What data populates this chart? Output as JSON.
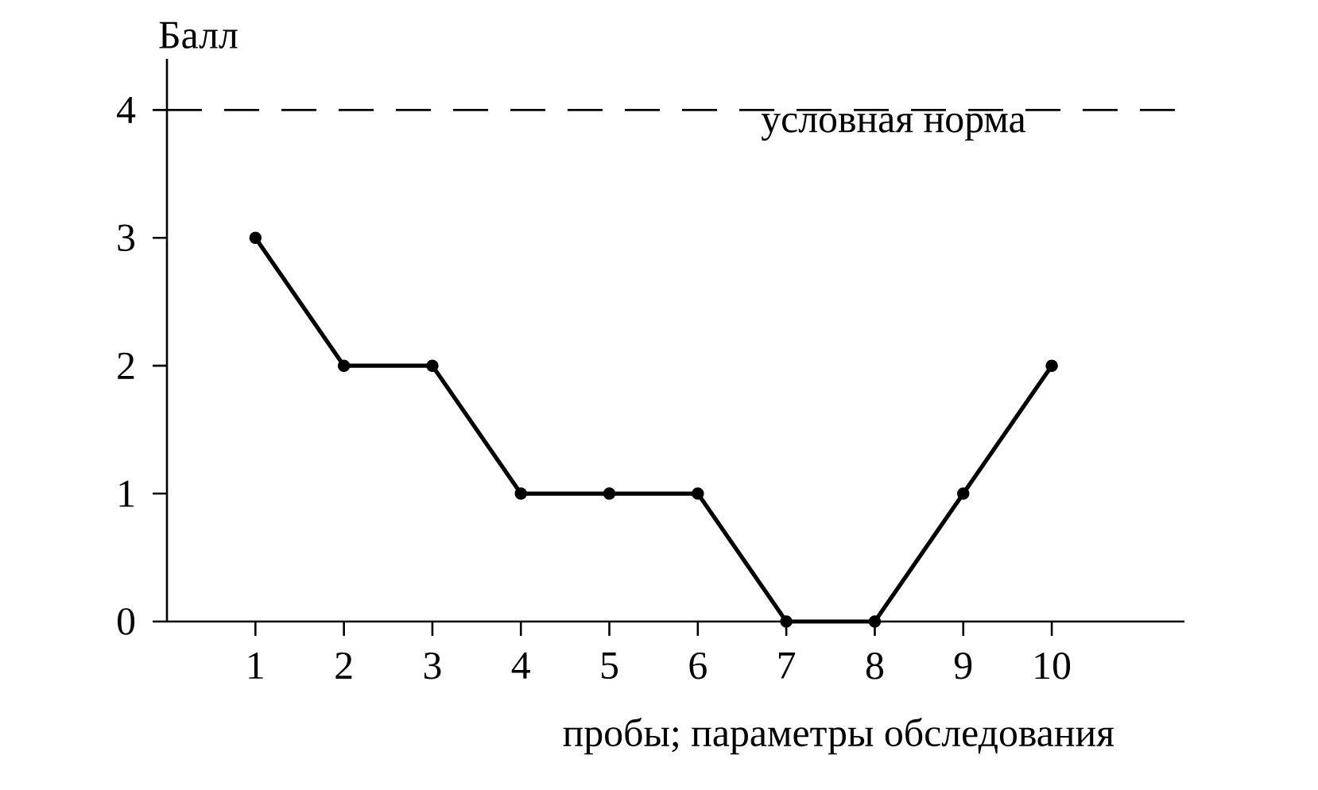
{
  "chart_data": {
    "type": "line",
    "ylabel": "Балл",
    "xlabel": "пробы; параметры обследования",
    "x": [
      1,
      2,
      3,
      4,
      5,
      6,
      7,
      8,
      9,
      10
    ],
    "values": [
      3,
      2,
      2,
      1,
      1,
      1,
      0,
      0,
      1,
      2
    ],
    "color": "#000000",
    "marker": "circle",
    "line_style": "solid",
    "xlim": [
      0,
      11.5
    ],
    "xticks": [
      1,
      2,
      3,
      4,
      5,
      6,
      7,
      8,
      9,
      10
    ],
    "ylim": [
      0,
      4.4
    ],
    "yticks": [
      0,
      1,
      2,
      3,
      4
    ],
    "ref_lines": [
      {
        "axis": "y",
        "value": 4,
        "label": "условная норма",
        "line_style": "dashed",
        "color": "#000000"
      }
    ]
  }
}
